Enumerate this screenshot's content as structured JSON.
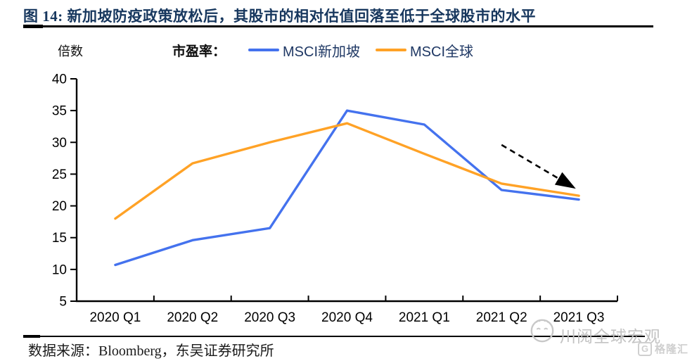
{
  "header": {
    "title": "图 14:  新加坡防疫政策放松后，其股市的相对估值回落至低于全球股市的水平"
  },
  "legend": {
    "prefix": "市盈率："
  },
  "chart_data": {
    "type": "line",
    "title": "",
    "xlabel": "",
    "ylabel": "倍数",
    "categories": [
      "2020 Q1",
      "2020 Q2",
      "2020 Q3",
      "2020 Q4",
      "2021 Q1",
      "2021 Q2",
      "2021 Q3"
    ],
    "series": [
      {
        "name": "MSCI新加坡",
        "color": "#4472EE",
        "values": [
          10.7,
          14.6,
          16.5,
          35.0,
          32.8,
          22.5,
          21.0
        ]
      },
      {
        "name": "MSCI全球",
        "color": "#FFA226",
        "values": [
          18.0,
          26.7,
          30.0,
          33.0,
          28.2,
          23.5,
          21.6
        ]
      }
    ],
    "ylim": [
      5,
      40
    ],
    "ytick_step": 5,
    "grid": false,
    "legend_position": "top",
    "annotation": {
      "type": "dashed-arrow",
      "from_index": 5.0,
      "from_value": 29.6,
      "to_index": 5.92,
      "to_value": 23.0
    }
  },
  "footer": {
    "source": "数据来源：Bloomberg，东吴证券研究所"
  },
  "watermarks": {
    "account": "川阅全球宏观",
    "platform_badge": "G",
    "platform": "格隆汇"
  },
  "colors": {
    "title": "#17375E",
    "legend_text": "#1F3864",
    "axis": "#000000",
    "series_singapore": "#4472EE",
    "series_world": "#FFA226",
    "watermark": "#C6C6C6"
  }
}
